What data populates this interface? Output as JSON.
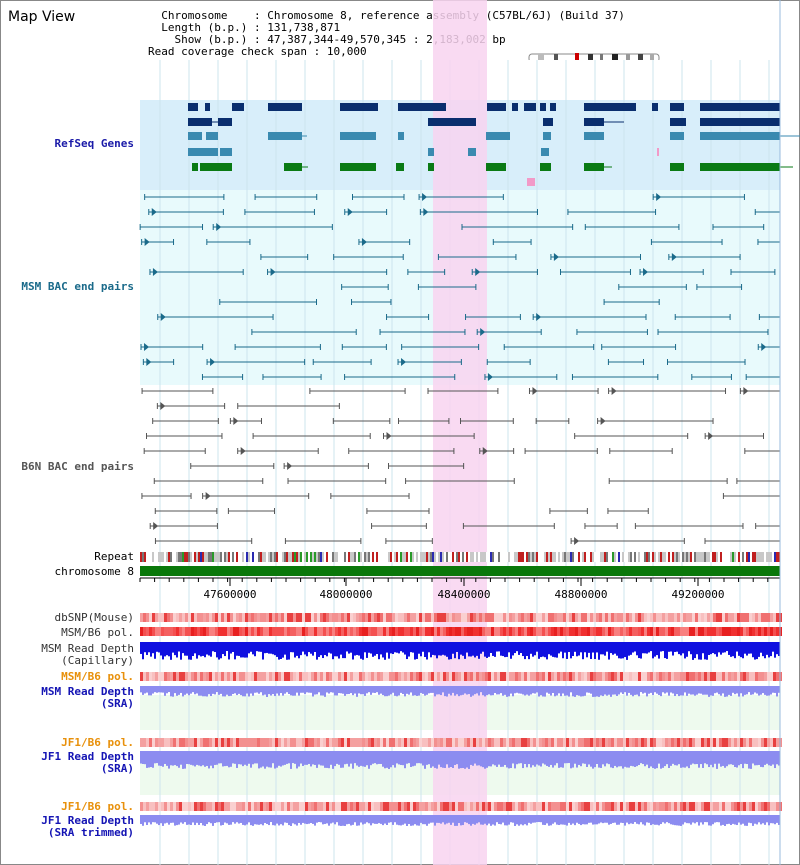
{
  "window": {
    "title": "Map View"
  },
  "info": {
    "chromosome_label": "Chromosome",
    "chromosome_value": "Chromosome 8, reference assembly (C57BL/6J) (Build 37)",
    "length_label": "Length (b.p.)",
    "length_value": "131,738,871",
    "show_label": "Show (b.p.)",
    "show_value": "47,387,344-49,570,345 : 2,183,002 bp",
    "coverage_label": "Read coverage check span",
    "coverage_value": "10,000"
  },
  "tracks": {
    "refseq": {
      "label": "RefSeq Genes",
      "color": "#1a1aa8"
    },
    "msm_bac": {
      "label": "MSM BAC end pairs",
      "color": "#1a6a8a"
    },
    "b6n_bac": {
      "label": "B6N BAC end pairs",
      "color": "#555555"
    },
    "repeat": {
      "label": "Repeat",
      "color": "#000000"
    },
    "chromosome": {
      "label": "chromosome 8",
      "color": "#000000"
    },
    "dbsnp": {
      "label": "dbSNP(Mouse)",
      "color": "#333333"
    },
    "msm_b6_pol": {
      "label": "MSM/B6 pol.",
      "color": "#333333"
    },
    "msm_depth_cap": {
      "label": "MSM Read Depth\n(Capillary)",
      "color": "#333333"
    },
    "msm_b6_pol_sra": {
      "label": "MSM/B6 pol.",
      "color": "#e8900a"
    },
    "msm_depth_sra": {
      "label": "MSM Read Depth\n(SRA)",
      "color": "#1414b4"
    },
    "jf1_b6_pol": {
      "label": "JF1/B6 pol.",
      "color": "#e8900a"
    },
    "jf1_depth_sra": {
      "label": "JF1 Read Depth\n(SRA)",
      "color": "#1414b4"
    },
    "jf1_b6_pol_trim": {
      "label": "JF1/B6 pol.",
      "color": "#e8900a"
    },
    "jf1_depth_trim": {
      "label": "JF1 Read Depth\n(SRA trimmed)",
      "color": "#1414b4"
    }
  },
  "axis": {
    "ticks": [
      "47600000",
      "48000000",
      "48400000",
      "48800000",
      "49200000"
    ]
  },
  "colors": {
    "highlight": "#f8d4f0",
    "refseq_bg": "#d8eefa",
    "msm_bg": "#e8fafc",
    "gene_dark": "#0a2e6e",
    "gene_mid": "#3a8ab0",
    "gene_green": "#0a7a14",
    "chromosome_bar": "#0a780a",
    "depth_blue": "#1010e0",
    "depth_light": "#8c8cf0"
  }
}
